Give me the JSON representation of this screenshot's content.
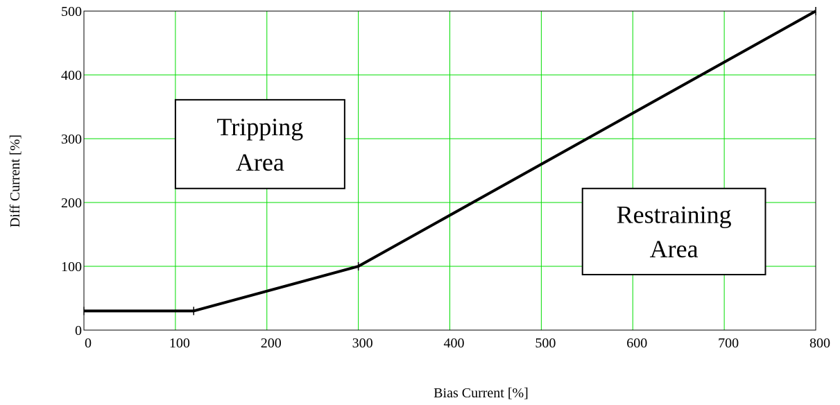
{
  "chart_data": {
    "type": "line",
    "title": "",
    "xlabel": "Bias Current [%]",
    "ylabel": "Diff Current [%]",
    "xlim": [
      0,
      800
    ],
    "ylim": [
      0,
      500
    ],
    "x_ticks": [
      "0",
      "100",
      "200",
      "300",
      "400",
      "500",
      "600",
      "700",
      "800"
    ],
    "y_ticks": [
      "0",
      "100",
      "200",
      "300",
      "400",
      "500"
    ],
    "grid": true,
    "grid_color": "#00dd00",
    "line_color": "#000000",
    "series": [
      {
        "points": [
          {
            "x": 0,
            "y": 30
          },
          {
            "x": 120,
            "y": 30
          },
          {
            "x": 300,
            "y": 100
          },
          {
            "x": 800,
            "y": 500
          }
        ]
      }
    ],
    "annotations": [
      {
        "lines": [
          "Tripping",
          "Area"
        ],
        "x1": 100,
        "x2": 285,
        "y1": 361,
        "y2": 222
      },
      {
        "lines": [
          "Restraining",
          "Area"
        ],
        "x1": 545,
        "x2": 745,
        "y1": 222,
        "y2": 87
      }
    ]
  }
}
